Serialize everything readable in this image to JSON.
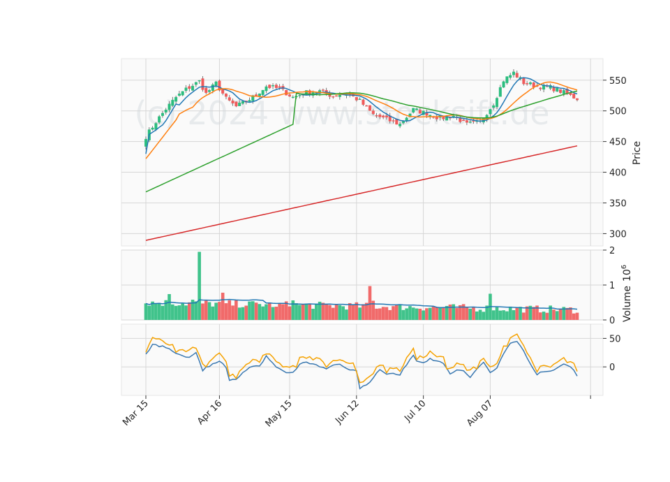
{
  "chart_data": {
    "type": "candlestick",
    "watermark": "(c) 2024 www.stocksift.de",
    "x_ticks": [
      {
        "label": "Mar 15",
        "index": 0
      },
      {
        "label": "Apr 16",
        "index": 22
      },
      {
        "label": "May 15",
        "index": 43
      },
      {
        "label": "Jun 12",
        "index": 63
      },
      {
        "label": "Jul 10",
        "index": 83
      },
      {
        "label": "Aug 07",
        "index": 103
      },
      {
        "label": "",
        "index": 133
      }
    ],
    "n_bars": 130,
    "price_panel": {
      "ylabel": "Price",
      "ylim": [
        280,
        585
      ],
      "yticks": [
        300,
        350,
        400,
        450,
        500,
        550
      ],
      "close_anchors": [
        [
          0,
          458
        ],
        [
          3,
          482
        ],
        [
          6,
          503
        ],
        [
          9,
          522
        ],
        [
          12,
          535
        ],
        [
          16,
          548
        ],
        [
          18,
          528
        ],
        [
          21,
          545
        ],
        [
          24,
          520
        ],
        [
          27,
          507
        ],
        [
          30,
          515
        ],
        [
          33,
          526
        ],
        [
          36,
          540
        ],
        [
          40,
          536
        ],
        [
          44,
          522
        ],
        [
          48,
          530
        ],
        [
          52,
          532
        ],
        [
          56,
          524
        ],
        [
          60,
          530
        ],
        [
          64,
          516
        ],
        [
          68,
          494
        ],
        [
          72,
          486
        ],
        [
          76,
          478
        ],
        [
          80,
          502
        ],
        [
          84,
          496
        ],
        [
          88,
          488
        ],
        [
          92,
          492
        ],
        [
          96,
          478
        ],
        [
          100,
          482
        ],
        [
          104,
          512
        ],
        [
          107,
          550
        ],
        [
          110,
          562
        ],
        [
          113,
          546
        ],
        [
          117,
          540
        ],
        [
          121,
          538
        ],
        [
          124,
          532
        ],
        [
          129,
          520
        ]
      ],
      "ma_colors": [
        "#1f77b4",
        "#ff7f0e",
        "#2ca02c",
        "#d62728"
      ]
    },
    "volume_panel": {
      "ylabel": "Volume  10^6",
      "unit_label": "Volume",
      "exponent": "6",
      "ylim": [
        0,
        2
      ],
      "yticks": [
        0,
        1,
        2
      ],
      "spikes": [
        [
          16,
          1.95
        ],
        [
          23,
          0.78
        ],
        [
          14,
          0.58
        ],
        [
          67,
          0.97
        ],
        [
          44,
          0.56
        ],
        [
          103,
          0.75
        ],
        [
          7,
          0.74
        ],
        [
          68,
          0.55
        ],
        [
          90,
          0.4
        ],
        [
          39,
          0.38
        ]
      ],
      "base_level": 0.3,
      "ma_color": "#1f77b4"
    },
    "oscillator_panel": {
      "ylim": [
        -50,
        75
      ],
      "yticks": [
        0,
        50
      ],
      "line_colors": [
        "#3a78b0",
        "#f5a200"
      ],
      "anchors": [
        [
          0,
          22
        ],
        [
          2,
          40
        ],
        [
          5,
          35
        ],
        [
          8,
          28
        ],
        [
          10,
          20
        ],
        [
          13,
          18
        ],
        [
          15,
          25
        ],
        [
          17,
          -5
        ],
        [
          20,
          5
        ],
        [
          22,
          12
        ],
        [
          24,
          -2
        ],
        [
          25,
          -25
        ],
        [
          27,
          -20
        ],
        [
          30,
          -5
        ],
        [
          32,
          2
        ],
        [
          34,
          0
        ],
        [
          36,
          20
        ],
        [
          38,
          5
        ],
        [
          40,
          -5
        ],
        [
          42,
          -12
        ],
        [
          44,
          -10
        ],
        [
          46,
          5
        ],
        [
          48,
          8
        ],
        [
          50,
          5
        ],
        [
          52,
          2
        ],
        [
          54,
          -5
        ],
        [
          56,
          2
        ],
        [
          58,
          5
        ],
        [
          60,
          -2
        ],
        [
          62,
          -5
        ],
        [
          63,
          -8
        ],
        [
          64,
          -38
        ],
        [
          66,
          -30
        ],
        [
          68,
          -20
        ],
        [
          70,
          -5
        ],
        [
          72,
          -12
        ],
        [
          74,
          -10
        ],
        [
          76,
          -15
        ],
        [
          78,
          5
        ],
        [
          80,
          20
        ],
        [
          81,
          12
        ],
        [
          83,
          8
        ],
        [
          85,
          15
        ],
        [
          87,
          10
        ],
        [
          89,
          5
        ],
        [
          91,
          -12
        ],
        [
          93,
          -5
        ],
        [
          95,
          -8
        ],
        [
          97,
          -18
        ],
        [
          99,
          -5
        ],
        [
          101,
          8
        ],
        [
          103,
          -10
        ],
        [
          105,
          -2
        ],
        [
          107,
          25
        ],
        [
          109,
          40
        ],
        [
          111,
          45
        ],
        [
          113,
          30
        ],
        [
          115,
          5
        ],
        [
          117,
          -12
        ],
        [
          119,
          -10
        ],
        [
          121,
          -8
        ],
        [
          123,
          -2
        ],
        [
          125,
          5
        ],
        [
          127,
          2
        ],
        [
          129,
          -15
        ]
      ]
    }
  }
}
